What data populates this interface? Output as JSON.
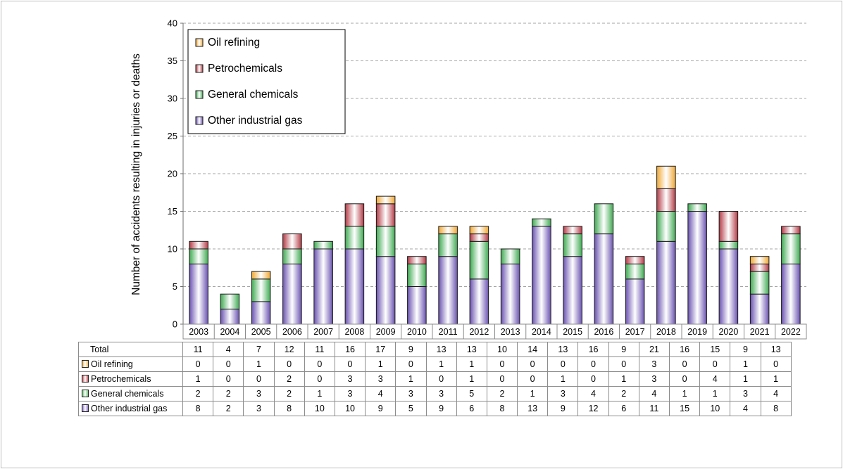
{
  "chart_data": {
    "type": "bar",
    "stacked": true,
    "ylabel": "Number of accidents resulting in injuries or deaths",
    "ylim": [
      0,
      40
    ],
    "yticks": [
      0,
      5,
      10,
      15,
      20,
      25,
      30,
      35,
      40
    ],
    "grid": true,
    "legend_position": "top-left",
    "categories": [
      "2003",
      "2004",
      "2005",
      "2006",
      "2007",
      "2008",
      "2009",
      "2010",
      "2011",
      "2012",
      "2013",
      "2014",
      "2015",
      "2016",
      "2017",
      "2018",
      "2019",
      "2020",
      "2021",
      "2022"
    ],
    "series": [
      {
        "name": "Other industrial gas",
        "color": "#8f79c9",
        "values": [
          8,
          2,
          3,
          8,
          10,
          10,
          9,
          5,
          9,
          6,
          8,
          13,
          9,
          12,
          6,
          11,
          15,
          10,
          4,
          8
        ]
      },
      {
        "name": "General chemicals",
        "color": "#70c27a",
        "values": [
          2,
          2,
          3,
          2,
          1,
          3,
          4,
          3,
          3,
          5,
          2,
          1,
          3,
          4,
          2,
          4,
          1,
          1,
          3,
          4
        ]
      },
      {
        "name": "Petrochemicals",
        "color": "#c45a62",
        "values": [
          1,
          0,
          0,
          2,
          0,
          3,
          3,
          1,
          0,
          1,
          0,
          0,
          1,
          0,
          1,
          3,
          0,
          4,
          1,
          1
        ]
      },
      {
        "name": "Oil refining",
        "color": "#f2b95a",
        "values": [
          0,
          0,
          1,
          0,
          0,
          0,
          1,
          0,
          1,
          1,
          0,
          0,
          0,
          0,
          0,
          3,
          0,
          0,
          1,
          0
        ]
      }
    ],
    "legend_order": [
      "Oil refining",
      "Petrochemicals",
      "General chemicals",
      "Other industrial gas"
    ],
    "table": {
      "total_label": "Total",
      "totals": [
        11,
        4,
        7,
        12,
        11,
        16,
        17,
        9,
        13,
        13,
        10,
        14,
        13,
        16,
        9,
        21,
        16,
        15,
        9,
        13
      ],
      "row_order": [
        "Oil refining",
        "Petrochemicals",
        "General chemicals",
        "Other industrial gas"
      ]
    }
  }
}
